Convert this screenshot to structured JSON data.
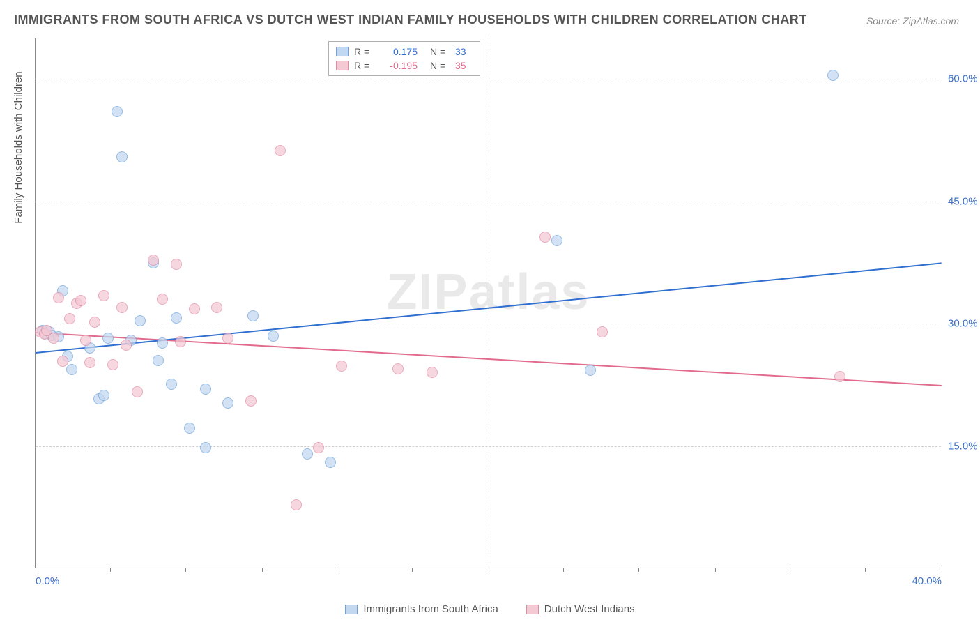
{
  "title": "IMMIGRANTS FROM SOUTH AFRICA VS DUTCH WEST INDIAN FAMILY HOUSEHOLDS WITH CHILDREN CORRELATION CHART",
  "source": "Source: ZipAtlas.com",
  "watermark": "ZIPatlas",
  "y_axis_label": "Family Households with Children",
  "chart": {
    "type": "scatter",
    "xlim": [
      0,
      40
    ],
    "ylim": [
      0,
      65
    ],
    "x_ticks": [
      0,
      20,
      40
    ],
    "x_tick_labels": [
      "0.0%",
      "",
      "40.0%"
    ],
    "x_minor_ticks": [
      3.3,
      6.6,
      10,
      13.3,
      16.6,
      23.3,
      26.6,
      30,
      33.3,
      36.6
    ],
    "y_ticks": [
      15,
      30,
      45,
      60
    ],
    "y_tick_labels": [
      "15.0%",
      "30.0%",
      "45.0%",
      "60.0%"
    ],
    "background_color": "#ffffff",
    "grid_color": "#d0d0d0",
    "axis_color": "#888888",
    "tick_label_color": "#3b6fc9",
    "series": [
      {
        "name": "Immigrants from South Africa",
        "color_fill": "#c2d8f0",
        "color_stroke": "#6fa3db",
        "trend_color": "#2f6fd0",
        "R": "0.175",
        "N": "33",
        "trend": {
          "x1": 0,
          "y1": 26.5,
          "x2": 40,
          "y2": 37.5
        },
        "points": [
          [
            0.3,
            29.2
          ],
          [
            0.4,
            28.8
          ],
          [
            0.6,
            29.0
          ],
          [
            0.7,
            28.6
          ],
          [
            1.0,
            28.4
          ],
          [
            1.2,
            34.0
          ],
          [
            1.4,
            26.0
          ],
          [
            1.6,
            24.4
          ],
          [
            2.4,
            27.0
          ],
          [
            2.8,
            20.8
          ],
          [
            3.0,
            21.2
          ],
          [
            3.2,
            28.2
          ],
          [
            3.6,
            56.0
          ],
          [
            3.8,
            50.5
          ],
          [
            4.2,
            28.0
          ],
          [
            4.6,
            30.4
          ],
          [
            5.2,
            37.5
          ],
          [
            5.4,
            25.5
          ],
          [
            5.6,
            27.6
          ],
          [
            6.0,
            22.6
          ],
          [
            6.2,
            30.7
          ],
          [
            6.8,
            17.2
          ],
          [
            7.5,
            22.0
          ],
          [
            7.5,
            14.8
          ],
          [
            8.5,
            20.3
          ],
          [
            9.6,
            31.0
          ],
          [
            10.5,
            28.5
          ],
          [
            12.0,
            14.0
          ],
          [
            13.0,
            13.0
          ],
          [
            23.0,
            40.2
          ],
          [
            24.5,
            24.3
          ],
          [
            35.2,
            60.5
          ]
        ]
      },
      {
        "name": "Dutch West Indians",
        "color_fill": "#f5c9d4",
        "color_stroke": "#e08aa3",
        "trend_color": "#e26b8d",
        "R": "-0.195",
        "N": "35",
        "trend": {
          "x1": 0,
          "y1": 29.0,
          "x2": 40,
          "y2": 22.5
        },
        "points": [
          [
            0.2,
            29.0
          ],
          [
            0.4,
            28.7
          ],
          [
            0.5,
            29.2
          ],
          [
            0.8,
            28.2
          ],
          [
            1.0,
            33.2
          ],
          [
            1.2,
            25.4
          ],
          [
            1.5,
            30.6
          ],
          [
            1.8,
            32.5
          ],
          [
            2.0,
            32.8
          ],
          [
            2.2,
            28.0
          ],
          [
            2.4,
            25.2
          ],
          [
            2.6,
            30.2
          ],
          [
            3.0,
            33.4
          ],
          [
            3.4,
            25.0
          ],
          [
            3.8,
            32.0
          ],
          [
            4.0,
            27.4
          ],
          [
            4.5,
            21.6
          ],
          [
            5.2,
            37.8
          ],
          [
            5.6,
            33.0
          ],
          [
            6.2,
            37.3
          ],
          [
            6.4,
            27.8
          ],
          [
            7.0,
            31.8
          ],
          [
            8.0,
            32.0
          ],
          [
            8.5,
            28.2
          ],
          [
            9.5,
            20.5
          ],
          [
            10.8,
            51.2
          ],
          [
            11.5,
            7.8
          ],
          [
            12.5,
            14.8
          ],
          [
            13.5,
            24.8
          ],
          [
            16.0,
            24.5
          ],
          [
            17.5,
            24.0
          ],
          [
            22.5,
            40.6
          ],
          [
            25.0,
            29.0
          ],
          [
            35.5,
            23.5
          ]
        ]
      }
    ]
  },
  "legend_bottom": [
    {
      "label": "Immigrants from South Africa",
      "fill": "#c2d8f0",
      "stroke": "#6fa3db"
    },
    {
      "label": "Dutch West Indians",
      "fill": "#f5c9d4",
      "stroke": "#e08aa3"
    }
  ]
}
